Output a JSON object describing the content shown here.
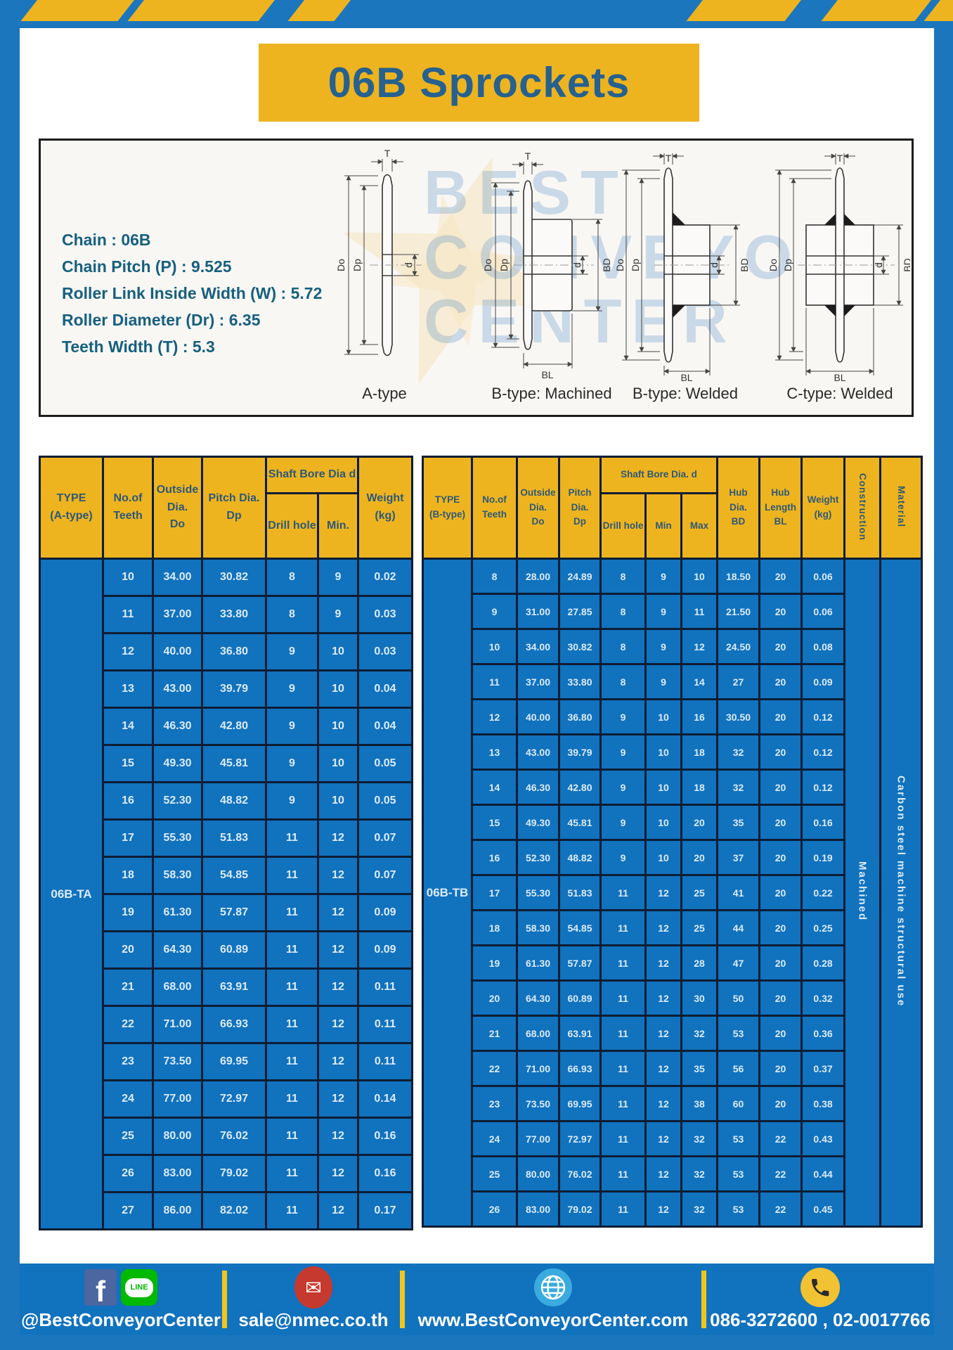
{
  "title": {
    "text": "06B Sprockets"
  },
  "specs": {
    "lines": [
      "Chain : 06B",
      "Chain Pitch (P) : 9.525",
      "Roller Link Inside Width (W) : 5.72",
      "Roller Diameter (Dr) : 6.35",
      "Teeth Width (T) : 5.3"
    ]
  },
  "watermark": {
    "line1": "BEST",
    "line2": "CONVEYOR",
    "line3": "CENTER"
  },
  "diagrams": {
    "captions": [
      "A-type",
      "B-type: Machined",
      "B-type: Welded",
      "C-type: Welded"
    ],
    "labels": {
      "t": "T",
      "do": "Do",
      "dp": "Dp",
      "d": "d",
      "bd": "BD",
      "bl": "BL"
    }
  },
  "table_a": {
    "type_label": "06B-TA",
    "headers": {
      "type": "TYPE\n(A-type)",
      "teeth": "No.of\nTeeth",
      "outside": "Outside\nDia.\nDo",
      "pitch": "Pitch Dia.\nDp",
      "shaft_bore": "Shaft Bore Dia d",
      "drill": "Drill hole",
      "min": "Min.",
      "weight": "Weight\n(kg)"
    },
    "rows": [
      [
        "10",
        "34.00",
        "30.82",
        "8",
        "9",
        "0.02"
      ],
      [
        "11",
        "37.00",
        "33.80",
        "8",
        "9",
        "0.03"
      ],
      [
        "12",
        "40.00",
        "36.80",
        "9",
        "10",
        "0.03"
      ],
      [
        "13",
        "43.00",
        "39.79",
        "9",
        "10",
        "0.04"
      ],
      [
        "14",
        "46.30",
        "42.80",
        "9",
        "10",
        "0.04"
      ],
      [
        "15",
        "49.30",
        "45.81",
        "9",
        "10",
        "0.05"
      ],
      [
        "16",
        "52.30",
        "48.82",
        "9",
        "10",
        "0.05"
      ],
      [
        "17",
        "55.30",
        "51.83",
        "11",
        "12",
        "0.07"
      ],
      [
        "18",
        "58.30",
        "54.85",
        "11",
        "12",
        "0.07"
      ],
      [
        "19",
        "61.30",
        "57.87",
        "11",
        "12",
        "0.09"
      ],
      [
        "20",
        "64.30",
        "60.89",
        "11",
        "12",
        "0.09"
      ],
      [
        "21",
        "68.00",
        "63.91",
        "11",
        "12",
        "0.11"
      ],
      [
        "22",
        "71.00",
        "66.93",
        "11",
        "12",
        "0.11"
      ],
      [
        "23",
        "73.50",
        "69.95",
        "11",
        "12",
        "0.11"
      ],
      [
        "24",
        "77.00",
        "72.97",
        "11",
        "12",
        "0.14"
      ],
      [
        "25",
        "80.00",
        "76.02",
        "11",
        "12",
        "0.16"
      ],
      [
        "26",
        "83.00",
        "79.02",
        "11",
        "12",
        "0.16"
      ],
      [
        "27",
        "86.00",
        "82.02",
        "11",
        "12",
        "0.17"
      ]
    ]
  },
  "table_b": {
    "type_label": "06B-TB",
    "construction": "Machined",
    "material": "Carbon steel machine structural use",
    "headers": {
      "type": "TYPE\n(B-type)",
      "teeth": "No.of\nTeeth",
      "outside": "Outside\nDia.\nDo",
      "pitch": "Pitch\nDia.\nDp",
      "shaft_bore": "Shaft Bore Dia. d",
      "drill": "Drill hole",
      "min": "Min",
      "max": "Max",
      "hub_dia": "Hub\nDia.\nBD",
      "hub_len": "Hub\nLength\nBL",
      "weight": "Weight\n(kg)",
      "construction": "Construction",
      "material": "Material"
    },
    "rows": [
      [
        "8",
        "28.00",
        "24.89",
        "8",
        "9",
        "10",
        "18.50",
        "20",
        "0.06"
      ],
      [
        "9",
        "31.00",
        "27.85",
        "8",
        "9",
        "11",
        "21.50",
        "20",
        "0.06"
      ],
      [
        "10",
        "34.00",
        "30.82",
        "8",
        "9",
        "12",
        "24.50",
        "20",
        "0.08"
      ],
      [
        "11",
        "37.00",
        "33.80",
        "8",
        "9",
        "14",
        "27",
        "20",
        "0.09"
      ],
      [
        "12",
        "40.00",
        "36.80",
        "9",
        "10",
        "16",
        "30.50",
        "20",
        "0.12"
      ],
      [
        "13",
        "43.00",
        "39.79",
        "9",
        "10",
        "18",
        "32",
        "20",
        "0.12"
      ],
      [
        "14",
        "46.30",
        "42.80",
        "9",
        "10",
        "18",
        "32",
        "20",
        "0.12"
      ],
      [
        "15",
        "49.30",
        "45.81",
        "9",
        "10",
        "20",
        "35",
        "20",
        "0.16"
      ],
      [
        "16",
        "52.30",
        "48.82",
        "9",
        "10",
        "20",
        "37",
        "20",
        "0.19"
      ],
      [
        "17",
        "55.30",
        "51.83",
        "11",
        "12",
        "25",
        "41",
        "20",
        "0.22"
      ],
      [
        "18",
        "58.30",
        "54.85",
        "11",
        "12",
        "25",
        "44",
        "20",
        "0.25"
      ],
      [
        "19",
        "61.30",
        "57.87",
        "11",
        "12",
        "28",
        "47",
        "20",
        "0.28"
      ],
      [
        "20",
        "64.30",
        "60.89",
        "11",
        "12",
        "30",
        "50",
        "20",
        "0.32"
      ],
      [
        "21",
        "68.00",
        "63.91",
        "11",
        "12",
        "32",
        "53",
        "20",
        "0.36"
      ],
      [
        "22",
        "71.00",
        "66.93",
        "11",
        "12",
        "35",
        "56",
        "20",
        "0.37"
      ],
      [
        "23",
        "73.50",
        "69.95",
        "11",
        "12",
        "38",
        "60",
        "20",
        "0.38"
      ],
      [
        "24",
        "77.00",
        "72.97",
        "11",
        "12",
        "32",
        "53",
        "22",
        "0.43"
      ],
      [
        "25",
        "80.00",
        "76.02",
        "11",
        "12",
        "32",
        "53",
        "22",
        "0.44"
      ],
      [
        "26",
        "83.00",
        "79.02",
        "11",
        "12",
        "32",
        "53",
        "22",
        "0.45"
      ]
    ]
  },
  "footer": {
    "social_handle": "@BestConveyorCenter",
    "email": "sale@nmec.co.th",
    "website": "www.BestConveyorCenter.com",
    "phones": "086-3272600 , 02-0017766"
  },
  "icons": {
    "facebook": "f",
    "line": "LINE",
    "email": "✉"
  },
  "colors": {
    "frame_blue": "#1b76bd",
    "table_blue": "#1172be",
    "accent_yellow": "#edb41f",
    "border_navy": "#0d1d33",
    "title_text": "#26618f",
    "specs_text": "#17607f",
    "header_text": "#2e5878",
    "data_text": "#dcebf8"
  }
}
